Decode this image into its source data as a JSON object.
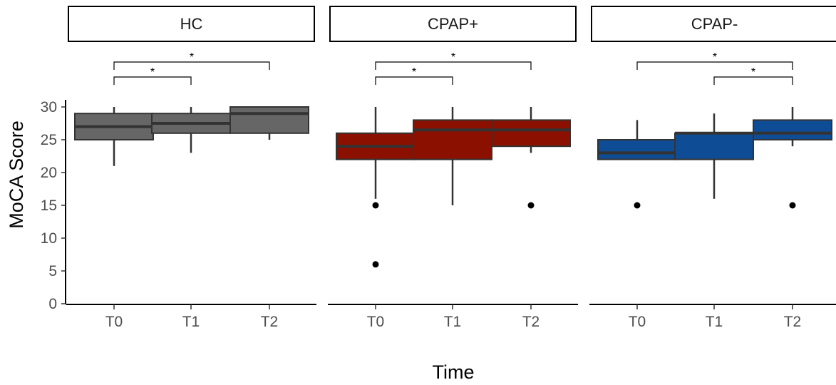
{
  "chart_data": {
    "type": "boxplot",
    "title": "",
    "xlabel": "Time",
    "ylabel": "MoCA Score",
    "ylim": [
      0,
      31
    ],
    "yticks": [
      0,
      5,
      10,
      15,
      20,
      25,
      30
    ],
    "categories": [
      "T0",
      "T1",
      "T2"
    ],
    "grid": false,
    "legend": "none",
    "facets": [
      {
        "name": "HC",
        "color": "#666666",
        "boxes": [
          {
            "x": "T0",
            "lower_whisker": 21,
            "q1": 25,
            "median": 27,
            "q3": 29,
            "upper_whisker": 30,
            "outliers": []
          },
          {
            "x": "T1",
            "lower_whisker": 23,
            "q1": 26,
            "median": 27.5,
            "q3": 29,
            "upper_whisker": 30,
            "outliers": []
          },
          {
            "x": "T2",
            "lower_whisker": 25,
            "q1": 26,
            "median": 29,
            "q3": 30,
            "upper_whisker": 30,
            "outliers": []
          }
        ],
        "significance": [
          {
            "from": "T0",
            "to": "T1",
            "label": "*"
          },
          {
            "from": "T0",
            "to": "T2",
            "label": "*"
          }
        ]
      },
      {
        "name": "CPAP+",
        "color": "#8B1000",
        "boxes": [
          {
            "x": "T0",
            "lower_whisker": 16,
            "q1": 22,
            "median": 24,
            "q3": 26,
            "upper_whisker": 30,
            "outliers": [
              15,
              6
            ]
          },
          {
            "x": "T1",
            "lower_whisker": 15,
            "q1": 22,
            "median": 26.5,
            "q3": 28,
            "upper_whisker": 30,
            "outliers": []
          },
          {
            "x": "T2",
            "lower_whisker": 23,
            "q1": 24,
            "median": 26.5,
            "q3": 28,
            "upper_whisker": 30,
            "outliers": [
              15
            ]
          }
        ],
        "significance": [
          {
            "from": "T0",
            "to": "T1",
            "label": "*"
          },
          {
            "from": "T0",
            "to": "T2",
            "label": "*"
          }
        ]
      },
      {
        "name": "CPAP-",
        "color": "#0F4C96",
        "boxes": [
          {
            "x": "T0",
            "lower_whisker": 22,
            "q1": 22,
            "median": 23,
            "q3": 25,
            "upper_whisker": 28,
            "outliers": [
              15
            ]
          },
          {
            "x": "T1",
            "lower_whisker": 16,
            "q1": 22,
            "median": 26,
            "q3": 26,
            "upper_whisker": 29,
            "outliers": []
          },
          {
            "x": "T2",
            "lower_whisker": 24,
            "q1": 25,
            "median": 26,
            "q3": 28,
            "upper_whisker": 30,
            "outliers": [
              15
            ]
          }
        ],
        "significance": [
          {
            "from": "T1",
            "to": "T2",
            "label": "*"
          },
          {
            "from": "T0",
            "to": "T2",
            "label": "*"
          }
        ]
      }
    ]
  }
}
